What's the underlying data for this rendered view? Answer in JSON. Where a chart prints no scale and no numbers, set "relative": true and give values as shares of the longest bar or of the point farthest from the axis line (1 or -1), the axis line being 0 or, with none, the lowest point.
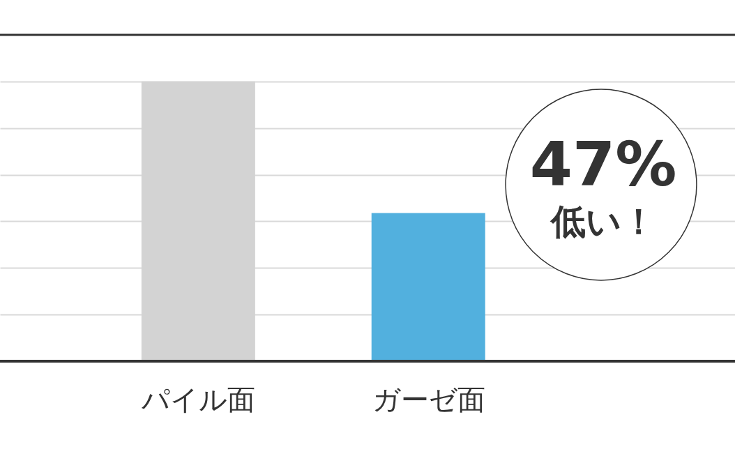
{
  "chart_data": {
    "type": "bar",
    "categories": [
      "パイル面",
      "ガーゼ面"
    ],
    "relative": true,
    "values": [
      1,
      0.53
    ],
    "colors": [
      "#d3d3d3",
      "#52b0de"
    ],
    "grid": "y",
    "annotations": [
      "47%",
      "低い！"
    ]
  }
}
